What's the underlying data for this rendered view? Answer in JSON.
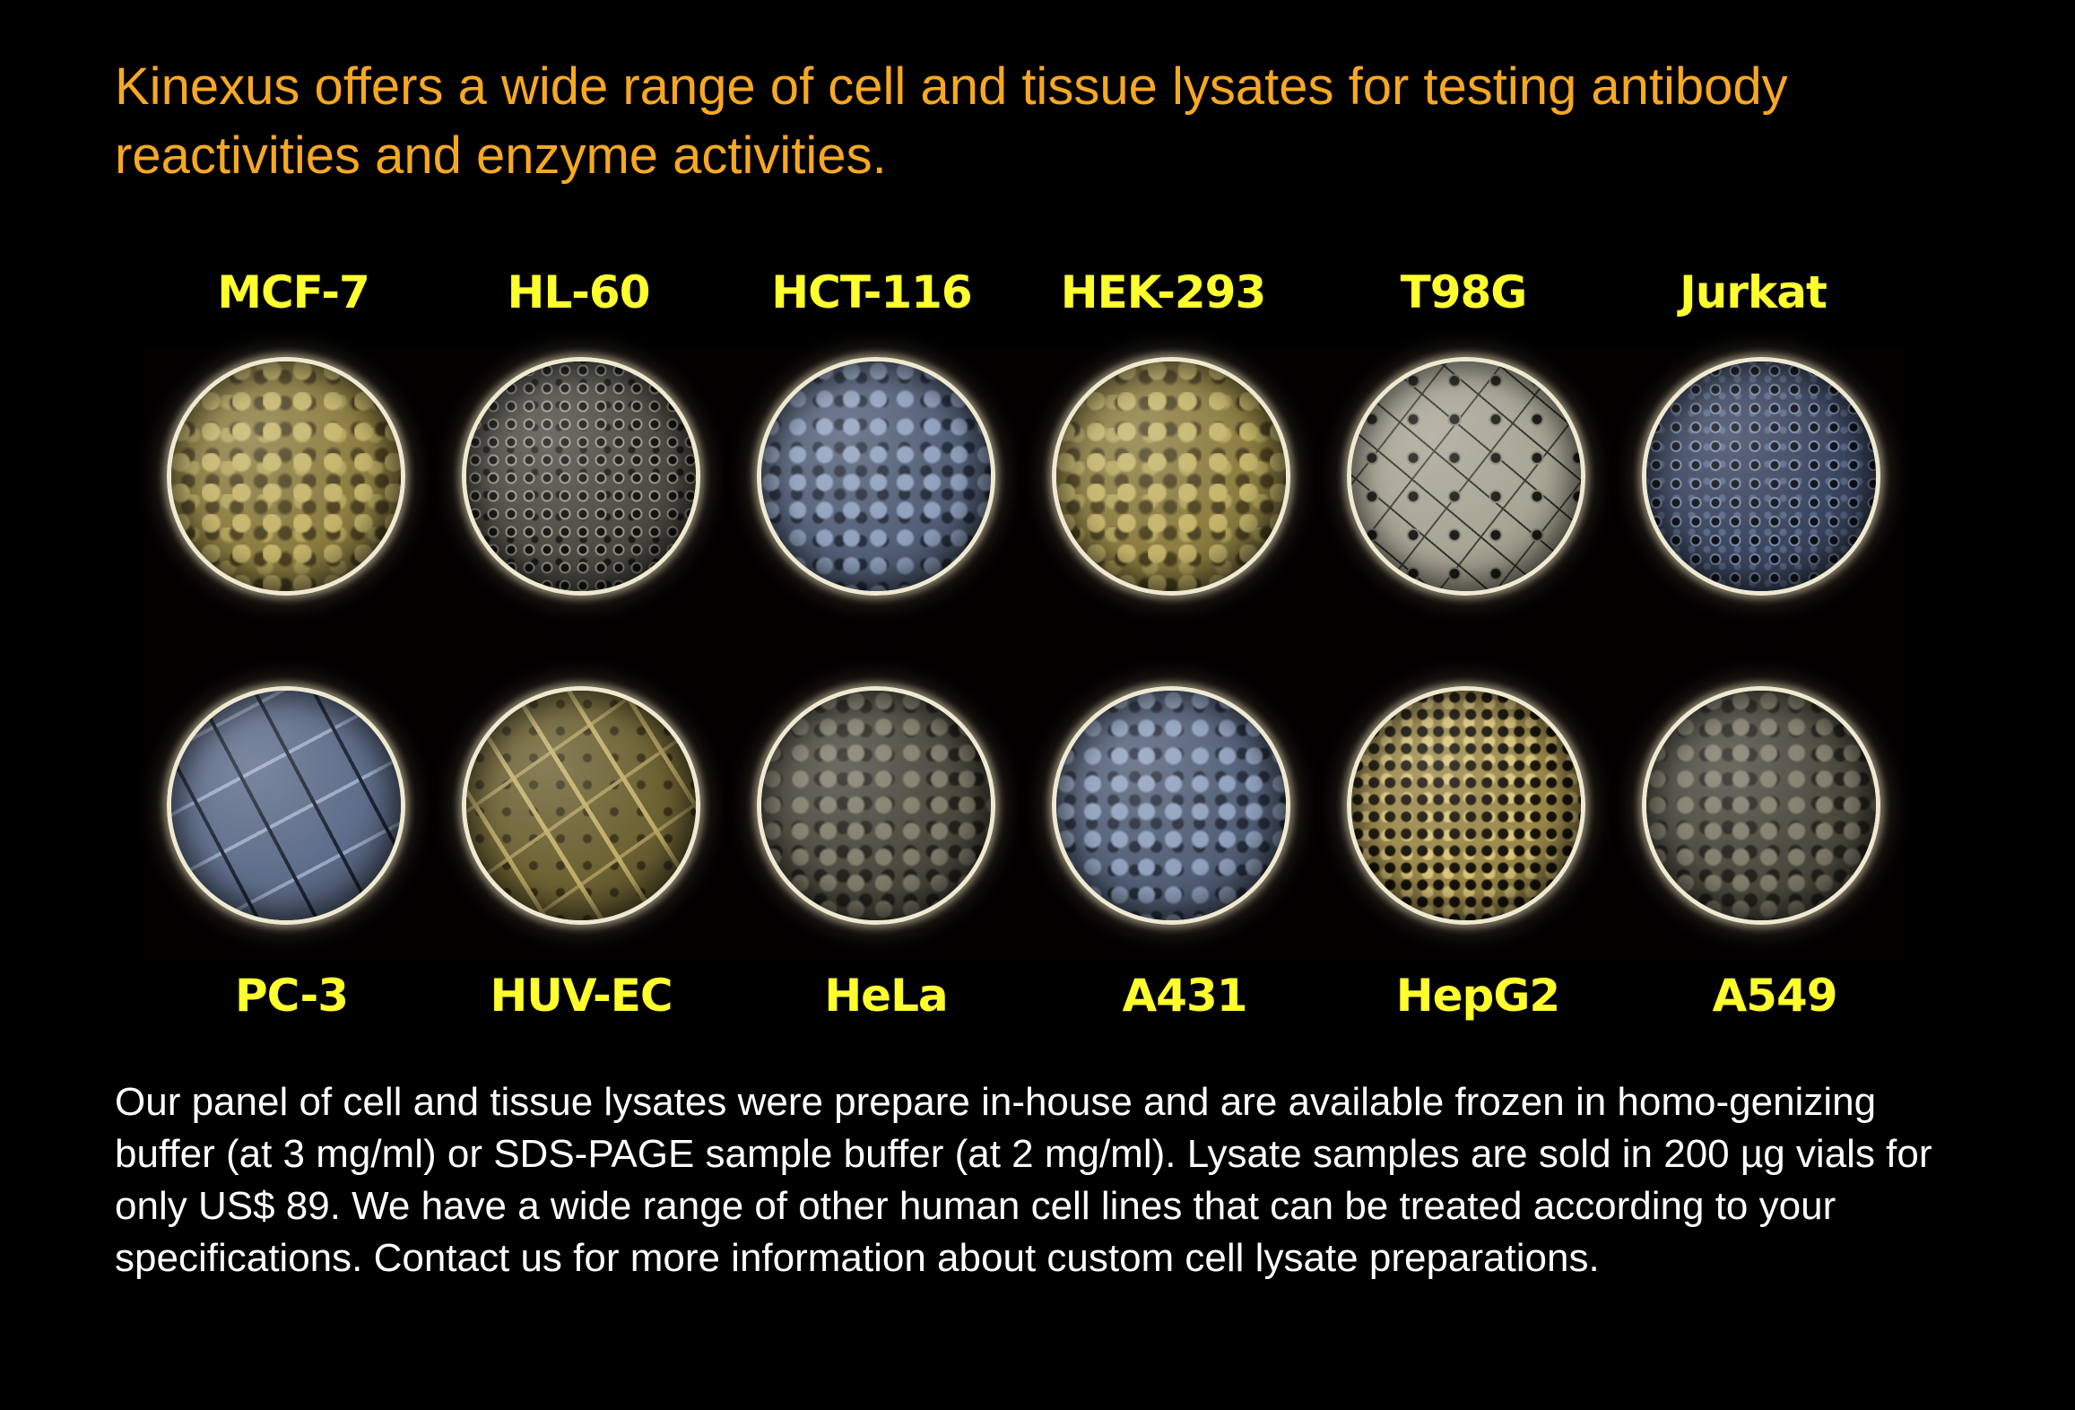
{
  "headline": "Kinexus offers a wide range of cell and tissue lysates for testing antibody reactivities and enzyme activities.",
  "top_row": [
    {
      "label": "MCF-7",
      "texture": "tex-gold"
    },
    {
      "label": "HL-60",
      "texture": "tex-gray-dots"
    },
    {
      "label": "HCT-116",
      "texture": "tex-blue"
    },
    {
      "label": "HEK-293",
      "texture": "tex-gold"
    },
    {
      "label": "T98G",
      "texture": "tex-gray-light"
    },
    {
      "label": "Jurkat",
      "texture": "tex-blue-dots"
    }
  ],
  "bottom_row": [
    {
      "label": "PC-3",
      "texture": "tex-blue-fibers"
    },
    {
      "label": "HUV-EC",
      "texture": "tex-gold-fibers"
    },
    {
      "label": "HeLa",
      "texture": "tex-gray-dark"
    },
    {
      "label": "A431",
      "texture": "tex-blue"
    },
    {
      "label": "HepG2",
      "texture": "tex-gold-fine"
    },
    {
      "label": "A549",
      "texture": "tex-gray-dark"
    }
  ],
  "body_text": "Our panel of cell and tissue lysates were prepare in-house and are available frozen in homo-genizing buffer (at 3 mg/ml) or SDS-PAGE sample buffer (at 2 mg/ml). Lysate samples are sold in 200 µg vials for only US$ 89. We have a wide range of other human cell lines that can be treated according to your specifications. Contact us for more information about custom cell lysate preparations.",
  "colors": {
    "background": "#000000",
    "headline": "#f7a823",
    "label": "#ffff2e",
    "body": "#ffffff"
  }
}
